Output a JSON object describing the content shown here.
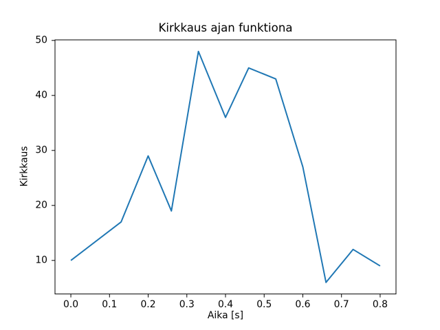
{
  "chart_data": {
    "type": "line",
    "title": "Kirkkaus ajan funktiona",
    "xlabel": "Aika [s]",
    "ylabel": "Kirkkaus",
    "x": [
      0.0,
      0.13,
      0.2,
      0.26,
      0.33,
      0.4,
      0.46,
      0.53,
      0.6,
      0.66,
      0.73,
      0.8
    ],
    "y": [
      10,
      17,
      29,
      19,
      48,
      36,
      45,
      43,
      27,
      6,
      12,
      9
    ],
    "xticks": {
      "values": [
        0.0,
        0.1,
        0.2,
        0.3,
        0.4,
        0.5,
        0.6,
        0.7,
        0.8
      ],
      "labels": [
        "0.0",
        "0.1",
        "0.2",
        "0.3",
        "0.4",
        "0.5",
        "0.6",
        "0.7",
        "0.8"
      ]
    },
    "yticks": {
      "values": [
        10,
        20,
        30,
        40,
        50
      ],
      "labels": [
        "10",
        "20",
        "30",
        "40",
        "50"
      ]
    },
    "xlim": [
      -0.041,
      0.841
    ],
    "ylim": [
      3.9,
      50.1
    ],
    "grid": false,
    "legend": null,
    "line_color": "#1f77b4",
    "line_width": 2,
    "axis_color": "#000000",
    "background_color": "#ffffff"
  }
}
